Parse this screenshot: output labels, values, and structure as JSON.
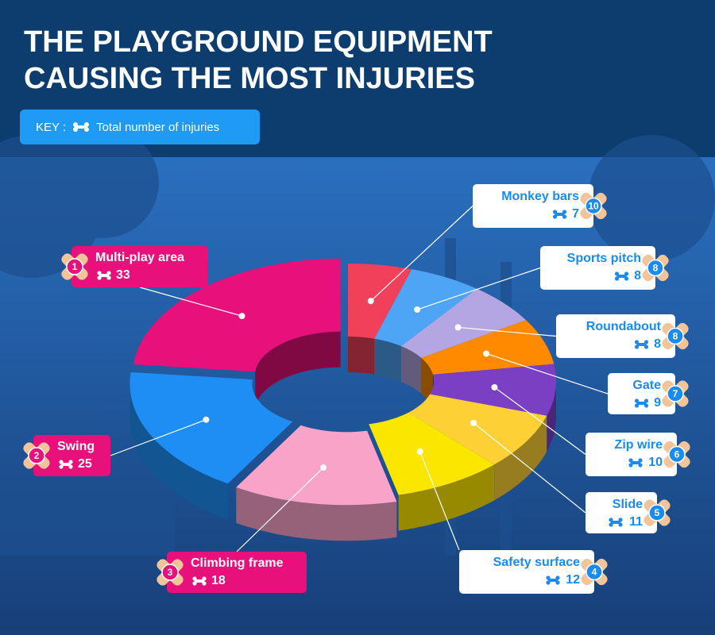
{
  "chart_data": {
    "type": "pie",
    "title": "THE PLAYGROUND EQUIPMENT CAUSING THE MOST INJURIES",
    "key_label": "KEY :",
    "key_text": "Total number of injuries",
    "categories": [
      "Multi-play area",
      "Swing",
      "Climbing frame",
      "Safety surface",
      "Slide",
      "Zip wire",
      "Gate",
      "Roundabout",
      "Sports pitch",
      "Monkey bars"
    ],
    "ranks": [
      1,
      2,
      3,
      4,
      5,
      6,
      7,
      8,
      8,
      10
    ],
    "values": [
      33,
      25,
      18,
      12,
      11,
      10,
      9,
      8,
      8,
      7
    ],
    "colors": [
      "#e8107a",
      "#1e8ef5",
      "#f9a3c9",
      "#fbe600",
      "#fdd035",
      "#7b3fc4",
      "#ff8a00",
      "#b4a6e2",
      "#4ea4f5",
      "#f0405a"
    ]
  }
}
